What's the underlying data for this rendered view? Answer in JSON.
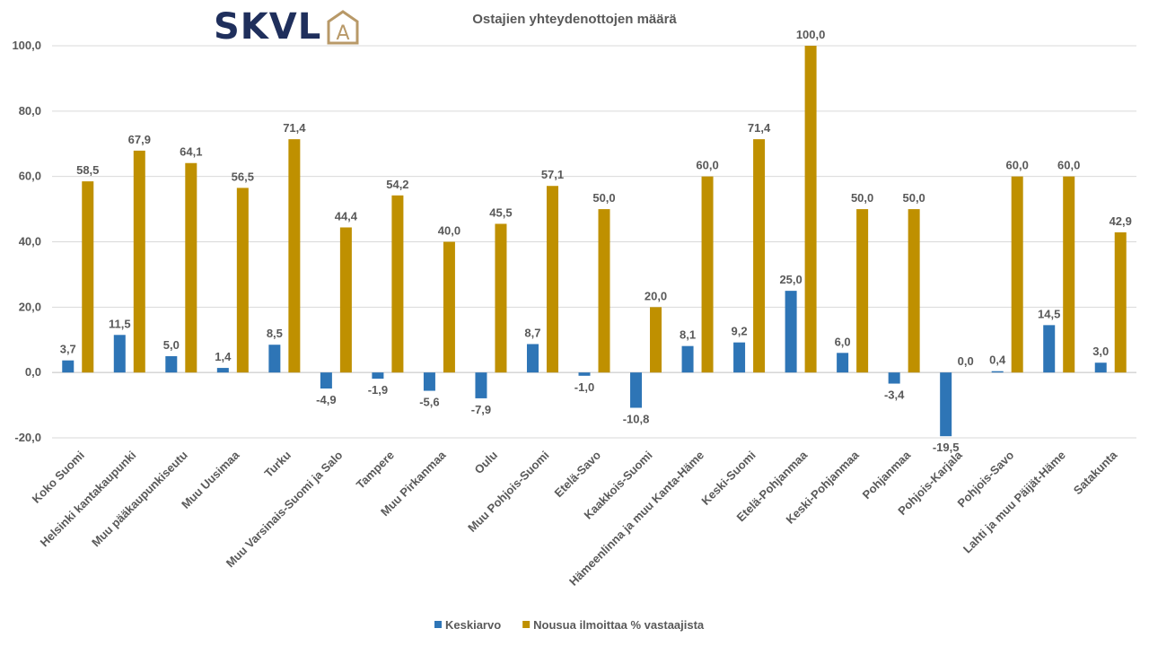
{
  "logo": {
    "text": "SKVL",
    "mark_letter": "A",
    "text_color": "#1f2f5c",
    "mark_color": "#b89968"
  },
  "chart_data": {
    "type": "bar",
    "title": "Ostajien yhteydenottojen määrä",
    "categories": [
      "Koko Suomi",
      "Helsinki kantakaupunki",
      "Muu pääkaupunkiseutu",
      "Muu Uusimaa",
      "Turku",
      "Muu Varsinais-Suomi ja Salo",
      "Tampere",
      "Muu Pirkanmaa",
      "Oulu",
      "Muu Pohjois-Suomi",
      "Etelä-Savo",
      "Kaakkois-Suomi",
      "Hämeenlinna ja muu Kanta-Häme",
      "Keski-Suomi",
      "Etelä-Pohjanmaa",
      "Keski-Pohjanmaa",
      "Pohjanmaa",
      "Pohjois-Karjala",
      "Pohjois-Savo",
      "Lahti ja muu Päijät-Häme",
      "Satakunta"
    ],
    "series": [
      {
        "name": "Keskiarvo",
        "color": "#2e75b6",
        "values": [
          3.7,
          11.5,
          5.0,
          1.4,
          8.5,
          -4.9,
          -1.9,
          -5.6,
          -7.9,
          8.7,
          -1.0,
          -10.8,
          8.1,
          9.2,
          25.0,
          6.0,
          -3.4,
          -19.5,
          0.4,
          14.5,
          3.0
        ],
        "labels": [
          "3,7",
          "11,5",
          "5,0",
          "1,4",
          "8,5",
          "-4,9",
          "-1,9",
          "-5,6",
          "-7,9",
          "8,7",
          "-1,0",
          "-10,8",
          "8,1",
          "9,2",
          "25,0",
          "6,0",
          "-3,4",
          "-19,5",
          "0,4",
          "14,5",
          "3,0"
        ]
      },
      {
        "name": "Nousua ilmoittaa % vastaajista",
        "color": "#bf9000",
        "values": [
          58.5,
          67.9,
          64.1,
          56.5,
          71.4,
          44.4,
          54.2,
          40.0,
          45.5,
          57.1,
          50.0,
          20.0,
          60.0,
          71.4,
          100.0,
          50.0,
          50.0,
          0.0,
          60.0,
          60.0,
          42.9
        ],
        "labels": [
          "58,5",
          "67,9",
          "64,1",
          "56,5",
          "71,4",
          "44,4",
          "54,2",
          "40,0",
          "45,5",
          "57,1",
          "50,0",
          "20,0",
          "60,0",
          "71,4",
          "100,0",
          "50,0",
          "50,0",
          "0,0",
          "60,0",
          "60,0",
          "42,9"
        ]
      }
    ],
    "ylim": [
      -20,
      100
    ],
    "yticks": [
      -20,
      0,
      20,
      40,
      60,
      80,
      100
    ],
    "ytick_labels": [
      "-20,0",
      "0,0",
      "20,0",
      "40,0",
      "60,0",
      "80,0",
      "100,0"
    ],
    "grid": true,
    "legend_position": "bottom"
  }
}
